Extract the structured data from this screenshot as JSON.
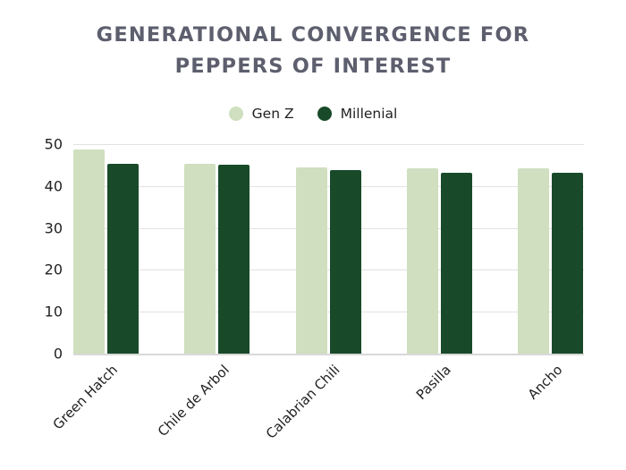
{
  "chart_data": {
    "type": "bar",
    "title": "GENERATIONAL CONVERGENCE FOR PEPPERS OF INTEREST",
    "title_lines": [
      "GENERATIONAL CONVERGENCE FOR",
      "PEPPERS OF INTEREST"
    ],
    "categories": [
      "Green Hatch",
      "Chile de Arbol",
      "Calabrian Chili",
      "Pasilla",
      "Ancho"
    ],
    "series": [
      {
        "name": "Gen Z",
        "color": "#cfdfbf",
        "values": [
          48.8,
          45.2,
          44.5,
          44.3,
          44.3
        ]
      },
      {
        "name": "Millenial",
        "color": "#184a29",
        "values": [
          45.2,
          45.0,
          43.9,
          43.2,
          43.2
        ]
      }
    ],
    "xlabel": "",
    "ylabel": "",
    "ylim": [
      0,
      50
    ],
    "yticks": [
      "0",
      "10",
      "20",
      "30",
      "40",
      "50"
    ],
    "grid": true,
    "legend_position": "top"
  },
  "colors": {
    "title": "#5d5f6e",
    "gen_z": "#cfdfbf",
    "millenial": "#184a29"
  }
}
